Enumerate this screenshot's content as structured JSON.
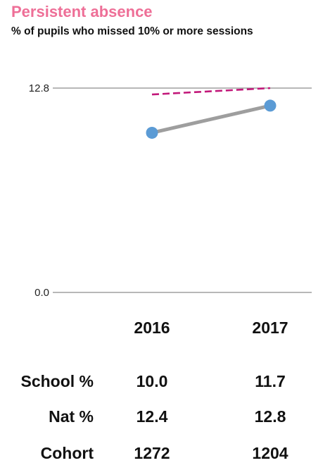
{
  "title": "Persistent absence",
  "subtitle": "% of pupils who missed 10% or more sessions",
  "chart_data": {
    "type": "line",
    "x": [
      "2016",
      "2017"
    ],
    "ylim": [
      0.0,
      12.8
    ],
    "y_ticks": [
      "0.0",
      "12.8"
    ],
    "grid": true,
    "series": [
      {
        "values": [
          10.0,
          11.7
        ],
        "color": "#9e9e9e",
        "marker_color": "#5b9bd5",
        "style": "solid"
      },
      {
        "values": [
          12.4,
          12.8
        ],
        "color": "#c2187a",
        "style": "dashed"
      }
    ]
  },
  "table": {
    "columns": [
      "2016",
      "2017"
    ],
    "rows": [
      {
        "label": "School %",
        "values": [
          "10.0",
          "11.7"
        ]
      },
      {
        "label": "Nat %",
        "values": [
          "12.4",
          "12.8"
        ]
      },
      {
        "label": "Cohort",
        "values": [
          "1272",
          "1204"
        ]
      }
    ]
  }
}
